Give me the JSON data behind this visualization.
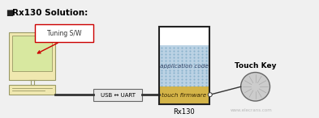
{
  "title": "Rx130 Solution:",
  "bg_color": "#f0f0f0",
  "monitor_color": "#f0e8b0",
  "monitor_border": "#999966",
  "screen_color": "#d8e8a0",
  "tuning_box": {
    "text": "Tuning S/W",
    "box_color": "#ffffff",
    "border_color": "#cc0000",
    "text_color": "#333333",
    "fontsize": 5.5
  },
  "usb_uart": {
    "text": "USB ↔ UART",
    "box_color": "#e8e8e8",
    "border_color": "#666666",
    "text_color": "#000000",
    "fontsize": 5.0
  },
  "rx130_box": {
    "app_color": "#aac8e0",
    "fw_color": "#d4b448",
    "white_color": "#ffffff",
    "app_text": "application code",
    "fw_text": "touch firmware",
    "app_fontsize": 5.2,
    "fw_fontsize": 5.2,
    "border_color": "#222222",
    "label": "Rx130",
    "label_fontsize": 6.0
  },
  "touch_key": {
    "label": "Touch Key",
    "label_fontsize": 6.5,
    "circle_color": "#cccccc",
    "border_color": "#666666"
  },
  "watermark": "www.elecrans.com"
}
